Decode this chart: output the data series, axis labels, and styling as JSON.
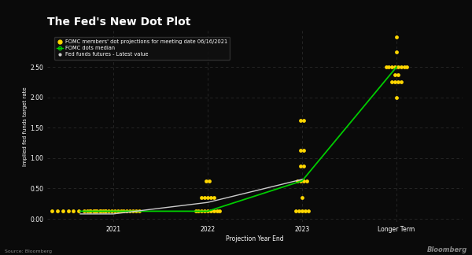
{
  "title": "The Fed's New Dot Plot",
  "xlabel": "Projection Year End",
  "ylabel": "Implied fed funds target rate",
  "background_color": "#0a0a0a",
  "text_color": "#ffffff",
  "dot_color": "#FFD700",
  "median_color": "#00CC00",
  "futures_color": "#cccccc",
  "ylim": [
    -0.05,
    3.1
  ],
  "yticks": [
    0.0,
    0.5,
    1.0,
    1.5,
    2.0,
    2.5
  ],
  "ytick_labels": [
    "0.00",
    "0.50",
    "1.00",
    "1.50",
    "2.00",
    "2.50"
  ],
  "legend_labels": [
    "FOMC members' dot projections for meeting date 06/16/2021",
    "FOMC dots median",
    "Fed funds futures - Latest value"
  ],
  "source_text": "Source: Bloomberg",
  "bloomberg_text": "Bloomberg",
  "xlim": [
    0.3,
    4.7
  ],
  "x_tick_positions": [
    1.0,
    2.0,
    3.0,
    4.0
  ],
  "x_tick_labels": [
    "2021",
    "2022",
    "2023",
    "Longer Term"
  ],
  "pre2021_y": 0.125,
  "pre2021_count": 11,
  "pre2021_x_start": 0.35,
  "pre2021_x_end": 0.92,
  "dots_2021": {
    "0.125": 18
  },
  "dots_2022": {
    "0.125": 9,
    "0.35": 5,
    "0.625": 2
  },
  "dots_2023": {
    "0.125": 5,
    "0.35": 1,
    "0.625": 4,
    "0.875": 2,
    "1.125": 2,
    "1.625": 2
  },
  "dots_longer": {
    "2.0": 1,
    "2.25": 4,
    "2.375": 2,
    "2.5": 8,
    "2.75": 1,
    "3.0": 1
  },
  "median_points_x": [
    0.65,
    1.0,
    2.0,
    3.0,
    4.0
  ],
  "median_points_y": [
    0.125,
    0.125,
    0.125,
    0.625,
    2.5
  ],
  "futures_points_x": [
    0.65,
    1.0,
    2.0,
    3.0
  ],
  "futures_points_y": [
    0.08,
    0.08,
    0.27,
    0.65
  ],
  "dot_size": 12,
  "dot_jitter": 0.032
}
